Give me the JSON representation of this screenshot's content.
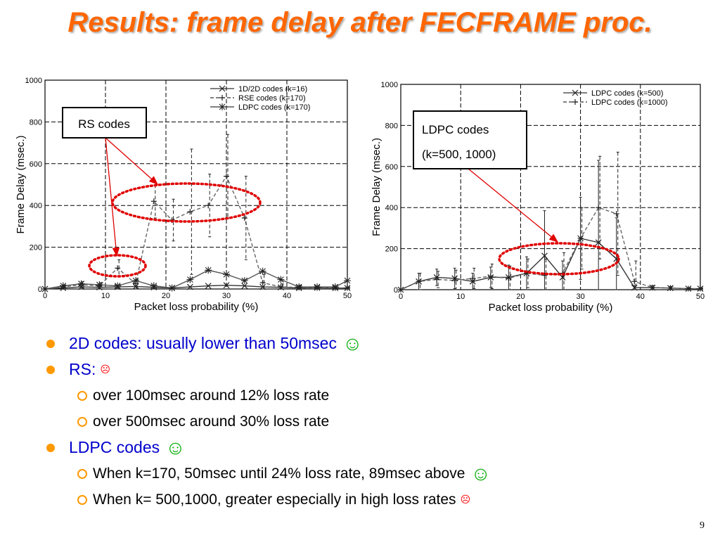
{
  "slide": {
    "title": "Results: frame delay after FECFRAME proc.",
    "page_number": "9"
  },
  "annotations": {
    "left_callout": "RS codes",
    "right_callout_line1": "LDPC codes",
    "right_callout_line2": "(k=500, 1000)"
  },
  "bullets": [
    {
      "text": "2D codes: usually lower than 50msec",
      "emoji": "☺",
      "mood": "good",
      "children": []
    },
    {
      "text": "RS:",
      "emoji": "☹",
      "mood": "bad",
      "children": [
        {
          "text": "over 100msec around 12% loss rate",
          "emoji": "",
          "mood": ""
        },
        {
          "text": "over 500msec around 30% loss rate",
          "emoji": "",
          "mood": ""
        }
      ]
    },
    {
      "text": "LDPC codes",
      "emoji": "☺",
      "mood": "good",
      "children": [
        {
          "text": "When k=170, 50msec until 24% loss rate, 89msec above",
          "emoji": "☺",
          "mood": "good"
        },
        {
          "text": "When k= 500,1000, greater especially in high loss rates",
          "emoji": "☹",
          "mood": "bad"
        }
      ]
    }
  ],
  "colors": {
    "title": "#ff6600",
    "bullet_text": "#0000cc",
    "bullet_marker": "#ff9900",
    "smile": "#00aa00",
    "frown": "#ff0000",
    "callout_arrow": "#e00000"
  },
  "chart_data": [
    {
      "type": "line",
      "title": "",
      "xlabel": "Packet loss probability (%)",
      "ylabel": "Frame Delay (msec.)",
      "xlim": [
        0,
        50
      ],
      "ylim": [
        0,
        1000
      ],
      "xticks": [
        0,
        10,
        20,
        30,
        40,
        50
      ],
      "yticks": [
        0,
        200,
        400,
        600,
        800,
        1000
      ],
      "grid": true,
      "legend": "top-right",
      "series": [
        {
          "name": "1D/2D codes (k=16)",
          "marker": "x",
          "dash": "solid",
          "x": [
            0,
            3,
            6,
            9,
            12,
            15,
            18,
            21,
            24,
            27,
            30,
            33,
            36,
            39,
            42,
            45,
            48,
            50
          ],
          "y": [
            0,
            5,
            10,
            8,
            10,
            12,
            8,
            5,
            10,
            15,
            18,
            15,
            10,
            8,
            5,
            6,
            5,
            5
          ]
        },
        {
          "name": "RSE codes (k=170)",
          "marker": "+",
          "dash": "dashed",
          "x": [
            0,
            3,
            6,
            9,
            12,
            15,
            18,
            21,
            24,
            27,
            30,
            33,
            36,
            39,
            42,
            45,
            48,
            50
          ],
          "y": [
            0,
            10,
            20,
            15,
            100,
            25,
            420,
            330,
            370,
            400,
            540,
            340,
            30,
            10,
            8,
            5,
            5,
            5
          ],
          "err": [
            0,
            10,
            15,
            15,
            40,
            20,
            80,
            100,
            300,
            150,
            200,
            200,
            40,
            15,
            10,
            5,
            5,
            5
          ]
        },
        {
          "name": "LDPC codes (k=170)",
          "marker": "*",
          "dash": "solid",
          "x": [
            0,
            3,
            6,
            9,
            12,
            15,
            18,
            21,
            24,
            27,
            30,
            33,
            36,
            39,
            42,
            45,
            48,
            50
          ],
          "y": [
            0,
            15,
            25,
            20,
            15,
            40,
            15,
            5,
            45,
            90,
            70,
            40,
            85,
            45,
            10,
            10,
            10,
            40
          ]
        }
      ]
    },
    {
      "type": "line",
      "title": "",
      "xlabel": "Packet loss probability (%)",
      "ylabel": "Frame Delay (msec.)",
      "xlim": [
        0,
        50
      ],
      "ylim": [
        0,
        1000
      ],
      "xticks": [
        0,
        10,
        20,
        30,
        40,
        50
      ],
      "yticks": [
        0,
        200,
        400,
        600,
        800,
        1000
      ],
      "grid": true,
      "legend": "top-right",
      "series": [
        {
          "name": "LDPC codes (k=500)",
          "marker": "x",
          "dash": "solid",
          "x": [
            0,
            3,
            6,
            9,
            12,
            15,
            18,
            21,
            24,
            27,
            30,
            33,
            36,
            39,
            42,
            45,
            48,
            50
          ],
          "y": [
            0,
            40,
            60,
            55,
            40,
            60,
            60,
            80,
            165,
            60,
            250,
            230,
            150,
            10,
            10,
            8,
            5,
            5
          ],
          "err": [
            0,
            40,
            40,
            50,
            40,
            50,
            60,
            80,
            220,
            80,
            200,
            400,
            200,
            10,
            10,
            8,
            5,
            5
          ]
        },
        {
          "name": "LDPC codes (k=1000)",
          "marker": "+",
          "dash": "dashed",
          "x": [
            0,
            3,
            6,
            9,
            12,
            15,
            18,
            21,
            24,
            27,
            30,
            33,
            36,
            39,
            42,
            45,
            48,
            50
          ],
          "y": [
            0,
            40,
            50,
            45,
            55,
            65,
            55,
            80,
            70,
            80,
            250,
            400,
            370,
            40,
            10,
            8,
            5,
            5
          ],
          "err": [
            0,
            40,
            40,
            50,
            50,
            60,
            60,
            70,
            80,
            100,
            150,
            250,
            300,
            100,
            10,
            8,
            5,
            5
          ]
        }
      ]
    }
  ]
}
